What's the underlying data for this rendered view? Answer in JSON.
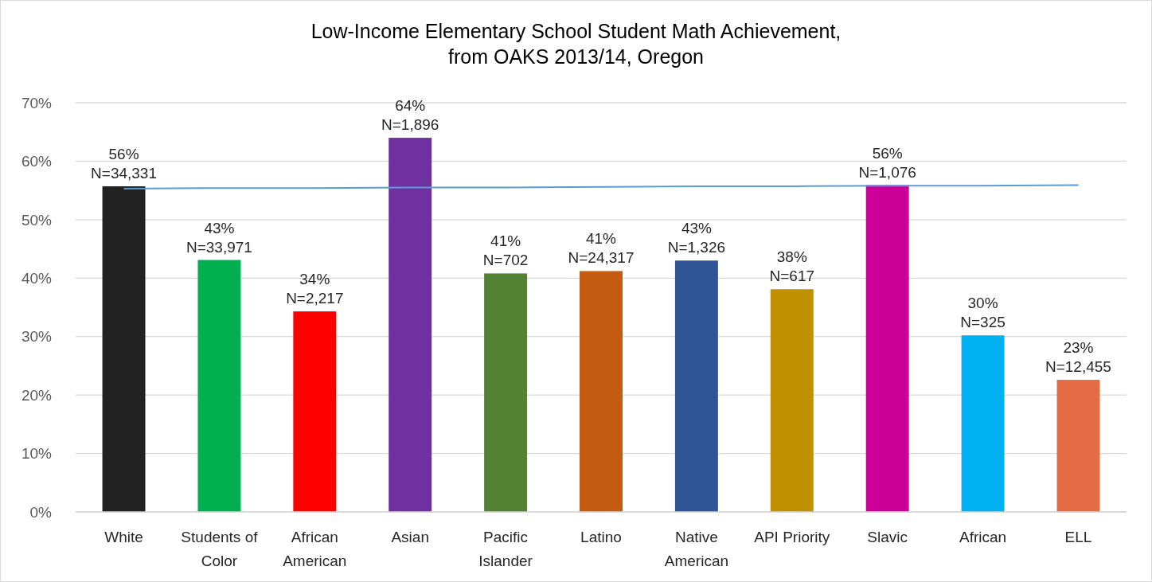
{
  "chart_data": {
    "type": "bar",
    "title": "Low-Income Elementary School Student Math Achievement,\nfrom OAKS 2013/14, Oregon",
    "categories": [
      "White",
      "Students of Color",
      "African American",
      "Asian",
      "Pacific Islander",
      "Latino",
      "Native American",
      "API Priority",
      "Slavic",
      "African",
      "ELL"
    ],
    "series": [
      {
        "values": [
          55.7,
          43.1,
          34.3,
          64,
          40.8,
          41.2,
          43,
          38.1,
          55.9,
          30.2,
          22.6
        ],
        "colors": [
          "#222222",
          "#00b050",
          "#ff0000",
          "#7030a0",
          "#548235",
          "#c55a11",
          "#2f5597",
          "#bf9000",
          "#cc0099",
          "#00b0f0",
          "#e46c45"
        ],
        "value_labels": [
          "56%\nN=34,331",
          "43%\nN=33,971",
          "34%\nN=2,217",
          "64%\nN=1,896",
          "41%\nN=702",
          "41%\nN=24,317",
          "43%\nN=1,326",
          "38%\nN=617",
          "56%\nN=1,076",
          "30%\nN=325",
          "23%\nN=12,455"
        ]
      },
      {
        "type": "line",
        "color": "#5b9bd5",
        "values": [
          55.3,
          55.4,
          55.4,
          55.5,
          55.5,
          55.6,
          55.7,
          55.7,
          55.8,
          55.8,
          55.9
        ]
      }
    ],
    "ylim": [
      0,
      70
    ],
    "yticks": [
      {
        "value": 0,
        "label": "0%"
      },
      {
        "value": 10,
        "label": "10%"
      },
      {
        "value": 20,
        "label": "20%"
      },
      {
        "value": 30,
        "label": "30%"
      },
      {
        "value": 40,
        "label": "40%"
      },
      {
        "value": 50,
        "label": "50%"
      },
      {
        "value": 60,
        "label": "60%"
      },
      {
        "value": 70,
        "label": "70%"
      }
    ],
    "grid": "y"
  }
}
